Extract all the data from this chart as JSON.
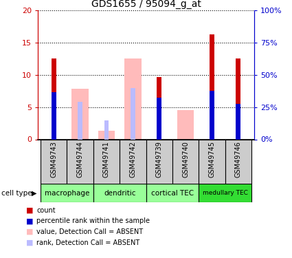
{
  "title": "GDS1655 / 95094_g_at",
  "samples": [
    "GSM49743",
    "GSM49744",
    "GSM49741",
    "GSM49742",
    "GSM49739",
    "GSM49740",
    "GSM49745",
    "GSM49746"
  ],
  "cell_groups": [
    {
      "label": "macrophage",
      "start": 0,
      "end": 2,
      "color": "#99ff99"
    },
    {
      "label": "dendritic",
      "start": 2,
      "end": 4,
      "color": "#99ff99"
    },
    {
      "label": "cortical TEC",
      "start": 4,
      "end": 6,
      "color": "#99ff99"
    },
    {
      "label": "medullary TEC",
      "start": 6,
      "end": 8,
      "color": "#33dd33"
    }
  ],
  "red_bars": [
    12.5,
    0,
    0,
    0,
    9.7,
    0,
    16.3,
    12.5
  ],
  "blue_bars": [
    7.3,
    0,
    0,
    0,
    6.5,
    0,
    7.5,
    5.5
  ],
  "pink_bars": [
    0,
    7.8,
    1.3,
    12.5,
    0,
    4.5,
    0,
    0
  ],
  "lightblue_bars": [
    0,
    5.8,
    2.9,
    7.9,
    0,
    0,
    0,
    0
  ],
  "ylim": [
    0,
    20
  ],
  "y2lim": [
    0,
    100
  ],
  "yticks": [
    0,
    5,
    10,
    15,
    20
  ],
  "ytick_labels": [
    "0",
    "5",
    "10",
    "15",
    "20"
  ],
  "y2ticks": [
    0,
    25,
    50,
    75,
    100
  ],
  "y2tick_labels": [
    "0%",
    "25%",
    "50%",
    "75%",
    "100%"
  ],
  "red_color": "#cc0000",
  "blue_color": "#0000cc",
  "pink_color": "#ffbbbb",
  "lightblue_color": "#bbbbff",
  "sample_bg_color": "#cccccc",
  "legend_items": [
    {
      "color": "#cc0000",
      "label": "count"
    },
    {
      "color": "#0000cc",
      "label": "percentile rank within the sample"
    },
    {
      "color": "#ffbbbb",
      "label": "value, Detection Call = ABSENT"
    },
    {
      "color": "#bbbbff",
      "label": "rank, Detection Call = ABSENT"
    }
  ]
}
